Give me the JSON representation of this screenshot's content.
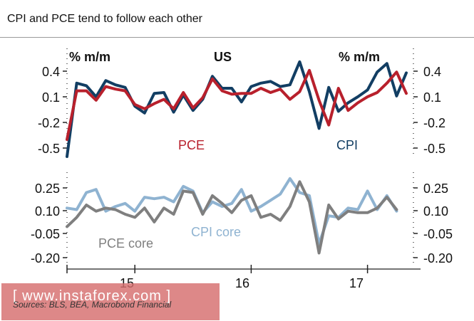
{
  "title": "CPI and PCE tend to follow each other",
  "source": "Sources: BLS, BEA, Macrobond Financial",
  "watermark": "[ www.instaforex.com ]",
  "colors": {
    "cpi": "#123e63",
    "pce": "#b8202c",
    "cpi_core": "#8fb3d1",
    "pce_core": "#7f7f7f",
    "watermark_bg": "#d66e6e"
  },
  "chart_data": [
    {
      "type": "line",
      "region": "US",
      "ylabel_left": "% m/m",
      "ylabel_right": "% m/m",
      "ylim": [
        -0.6,
        0.55
      ],
      "yticks": [
        "0.4",
        "0.1",
        "-0.2",
        "-0.5"
      ],
      "ytick_values": [
        0.4,
        0.1,
        -0.2,
        -0.5
      ],
      "x_start": "2014-06",
      "series": [
        {
          "name": "PCE",
          "color": "#b8202c",
          "values": [
            -0.4,
            0.17,
            0.17,
            0.06,
            0.22,
            0.19,
            0.17,
            0.01,
            -0.04,
            0.02,
            0.07,
            -0.04,
            0.15,
            -0.03,
            0.09,
            0.31,
            0.17,
            0.13,
            0.14,
            0.14,
            0.2,
            0.15,
            0.19,
            0.07,
            0.16,
            0.41,
            0.06,
            -0.23,
            0.2,
            -0.06,
            0.03,
            0.1,
            0.15,
            0.26,
            0.39,
            0.14
          ]
        },
        {
          "name": "CPI",
          "color": "#123e63",
          "values": [
            -0.6,
            0.26,
            0.23,
            0.1,
            0.29,
            0.24,
            0.21,
            -0.01,
            -0.09,
            0.14,
            0.15,
            -0.08,
            0.12,
            -0.06,
            0.07,
            0.34,
            0.2,
            0.2,
            0.04,
            0.22,
            0.26,
            0.28,
            0.22,
            0.24,
            0.51,
            0.16,
            -0.27,
            0.21,
            -0.07,
            0.03,
            0.1,
            0.18,
            0.39,
            0.49,
            0.11,
            0.38
          ]
        }
      ]
    },
    {
      "type": "line",
      "ylim": [
        -0.24,
        0.34
      ],
      "yticks": [
        "0.25",
        "0.10",
        "-0.05",
        "-0.20"
      ],
      "ytick_values": [
        0.25,
        0.1,
        -0.05,
        -0.2
      ],
      "xticks": [
        "15",
        "16",
        "17"
      ],
      "xtick_positions": [
        3,
        15,
        27
      ],
      "series": [
        {
          "name": "CPI core",
          "color": "#8fb3d1",
          "values": [
            0.12,
            0.11,
            0.22,
            0.24,
            0.1,
            0.13,
            0.15,
            0.1,
            0.19,
            0.18,
            0.19,
            0.16,
            0.26,
            0.23,
            0.09,
            0.16,
            0.13,
            0.15,
            0.24,
            0.1,
            0.13,
            0.17,
            0.21,
            0.31,
            0.22,
            0.2,
            -0.11,
            0.07,
            0.06,
            0.12,
            0.11,
            0.23,
            0.11,
            0.2,
            0.1
          ]
        },
        {
          "name": "PCE core",
          "color": "#7f7f7f",
          "values": [
            0.0,
            0.06,
            0.14,
            0.1,
            0.12,
            0.11,
            0.08,
            0.06,
            0.12,
            0.03,
            0.12,
            0.08,
            0.23,
            0.22,
            0.08,
            0.2,
            0.15,
            0.09,
            0.17,
            0.2,
            0.06,
            0.08,
            0.04,
            0.13,
            0.29,
            0.16,
            -0.17,
            0.14,
            0.05,
            0.1,
            0.09,
            0.09,
            0.12,
            0.19,
            0.11
          ]
        }
      ]
    }
  ]
}
